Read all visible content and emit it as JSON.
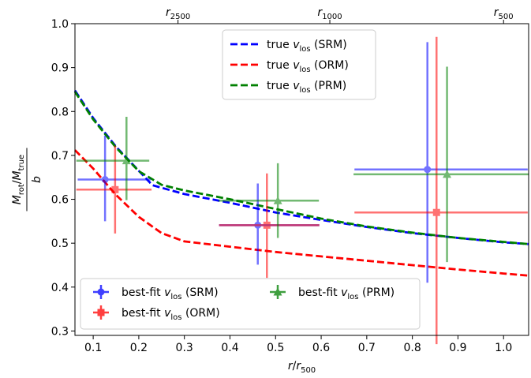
{
  "chart_data": {
    "type": "scatter",
    "xlabel": "r/r500",
    "ylabel": "Mrot/Mtrue / b",
    "xlim": [
      0.06,
      1.055
    ],
    "ylim": [
      0.29,
      1.0
    ],
    "grid": false,
    "x_ticks": [
      0.1,
      0.2,
      0.3,
      0.4,
      0.5,
      0.6,
      0.7,
      0.8,
      0.9,
      1.0
    ],
    "x_tick_labels": [
      "0.1",
      "0.2",
      "0.3",
      "0.4",
      "0.5",
      "0.6",
      "0.7",
      "0.8",
      "0.9",
      "1.0"
    ],
    "y_ticks": [
      0.3,
      0.4,
      0.5,
      0.6,
      0.7,
      0.8,
      0.9,
      1.0
    ],
    "y_tick_labels": [
      "0.3",
      "0.4",
      "0.5",
      "0.6",
      "0.7",
      "0.8",
      "0.9",
      "1.0"
    ],
    "top_axis": {
      "ticks": [
        {
          "x": 0.286,
          "base": "r",
          "sub": "2500"
        },
        {
          "x": 0.619,
          "base": "r",
          "sub": "1000"
        },
        {
          "x": 1.0,
          "base": "r",
          "sub": "500"
        }
      ]
    },
    "lines": [
      {
        "name_main": "true ",
        "name_v": "v",
        "name_sub": "los",
        "name_tail": " (SRM)",
        "color": "#0000ff",
        "x": [
          0.06,
          0.1,
          0.15,
          0.2,
          0.23,
          0.3,
          0.4,
          0.5,
          0.6,
          0.7,
          0.8,
          0.9,
          1.0,
          1.055
        ],
        "y": [
          0.848,
          0.785,
          0.72,
          0.665,
          0.632,
          0.612,
          0.592,
          0.57,
          0.553,
          0.537,
          0.523,
          0.512,
          0.502,
          0.498
        ]
      },
      {
        "name_main": "true ",
        "name_v": "v",
        "name_sub": "los",
        "name_tail": " (ORM)",
        "color": "#ff0000",
        "x": [
          0.06,
          0.1,
          0.15,
          0.2,
          0.25,
          0.3,
          0.4,
          0.5,
          0.6,
          0.7,
          0.8,
          0.9,
          1.0,
          1.055
        ],
        "y": [
          0.712,
          0.67,
          0.61,
          0.56,
          0.523,
          0.504,
          0.492,
          0.48,
          0.47,
          0.46,
          0.45,
          0.44,
          0.431,
          0.426
        ]
      },
      {
        "name_main": "true ",
        "name_v": "v",
        "name_sub": "los",
        "name_tail": " (PRM)",
        "color": "#008000",
        "x": [
          0.06,
          0.1,
          0.15,
          0.2,
          0.25,
          0.3,
          0.4,
          0.5,
          0.6,
          0.7,
          0.8,
          0.9,
          1.0,
          1.055
        ],
        "y": [
          0.845,
          0.782,
          0.718,
          0.664,
          0.633,
          0.62,
          0.6,
          0.578,
          0.556,
          0.538,
          0.524,
          0.512,
          0.503,
          0.498
        ]
      }
    ],
    "points": [
      {
        "name_main": "best-fit ",
        "name_v": "v",
        "name_sub": "los",
        "name_tail": " (SRM)",
        "color": "#0000ff",
        "marker": "circle",
        "data": [
          {
            "x": 0.126,
            "y": 0.645,
            "xerr": [
              0.06,
              0.1
            ],
            "yerr": [
              0.095,
              0.1
            ]
          },
          {
            "x": 0.461,
            "y": 0.541,
            "xerr": [
              0.085,
              0.135
            ],
            "yerr": [
              0.09,
              0.095
            ]
          },
          {
            "x": 0.833,
            "y": 0.668,
            "xerr": [
              0.16,
              0.22
            ],
            "yerr": [
              0.258,
              0.29
            ]
          }
        ]
      },
      {
        "name_main": "best-fit ",
        "name_v": "v",
        "name_sub": "los",
        "name_tail": " (ORM)",
        "color": "#ff0000",
        "marker": "square",
        "data": [
          {
            "x": 0.148,
            "y": 0.622,
            "xerr": [
              0.085,
              0.08
            ],
            "yerr": [
              0.1,
              0.1
            ]
          },
          {
            "x": 0.481,
            "y": 0.541,
            "xerr": [
              0.105,
              0.115
            ],
            "yerr": [
              0.12,
              0.118
            ]
          },
          {
            "x": 0.853,
            "y": 0.57,
            "xerr": [
              0.18,
              0.2
            ],
            "yerr": [
              0.3,
              0.4
            ]
          }
        ]
      },
      {
        "name_main": "best-fit ",
        "name_v": "v",
        "name_sub": "los",
        "name_tail": " (PRM)",
        "color": "#008000",
        "marker": "triangle",
        "data": [
          {
            "x": 0.173,
            "y": 0.688,
            "xerr": [
              0.11,
              0.05
            ],
            "yerr": [
              0.09,
              0.1
            ]
          },
          {
            "x": 0.505,
            "y": 0.597,
            "xerr": [
              0.13,
              0.09
            ],
            "yerr": [
              0.085,
              0.085
            ]
          },
          {
            "x": 0.876,
            "y": 0.657,
            "xerr": [
              0.205,
              0.18
            ],
            "yerr": [
              0.2,
              0.245
            ]
          }
        ]
      }
    ],
    "legend_upper": "top-center",
    "legend_lower": "bottom-left"
  }
}
